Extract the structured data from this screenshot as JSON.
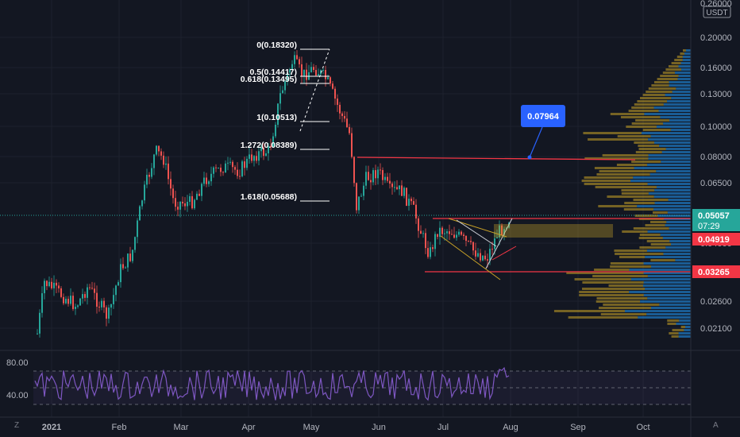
{
  "currency": "USDT",
  "top_price_partial": "0.26000",
  "price_axis": [
    "0.20000",
    "0.16000",
    "0.13000",
    "0.10000",
    "0.08000",
    "0.06500",
    "0.04000",
    "0.02600",
    "0.02100"
  ],
  "price_tags": {
    "current": {
      "value": "0.05057",
      "countdown": "07:29",
      "color": "#26a69a"
    },
    "resistance": {
      "value": "0.04919",
      "color": "#f23645"
    },
    "support": {
      "value": "0.03265",
      "color": "#f23645"
    }
  },
  "callout": {
    "value": "0.07964",
    "color": "#2962ff"
  },
  "fib_levels": [
    {
      "label": "0(0.18320)"
    },
    {
      "label": "0.5(0.14417)"
    },
    {
      "label": "0.618(0.13495)"
    },
    {
      "label": "1(0.10513)"
    },
    {
      "label": "1.272(0.08389)"
    },
    {
      "label": "1.618(0.05688)"
    }
  ],
  "time_axis": [
    "2021",
    "Feb",
    "Mar",
    "Apr",
    "May",
    "Jun",
    "Jul",
    "Aug",
    "Sep",
    "Oct"
  ],
  "rsi": {
    "upper": "80.00",
    "lower": "40.00",
    "line_color": "#7e57c2"
  },
  "buttons": {
    "tz": "Z",
    "auto": "A"
  },
  "colors": {
    "up": "#26a69a",
    "down": "#ef5350",
    "vol_up": "#2196f3",
    "vol_down": "#c9a227",
    "levels": "#f23645"
  }
}
